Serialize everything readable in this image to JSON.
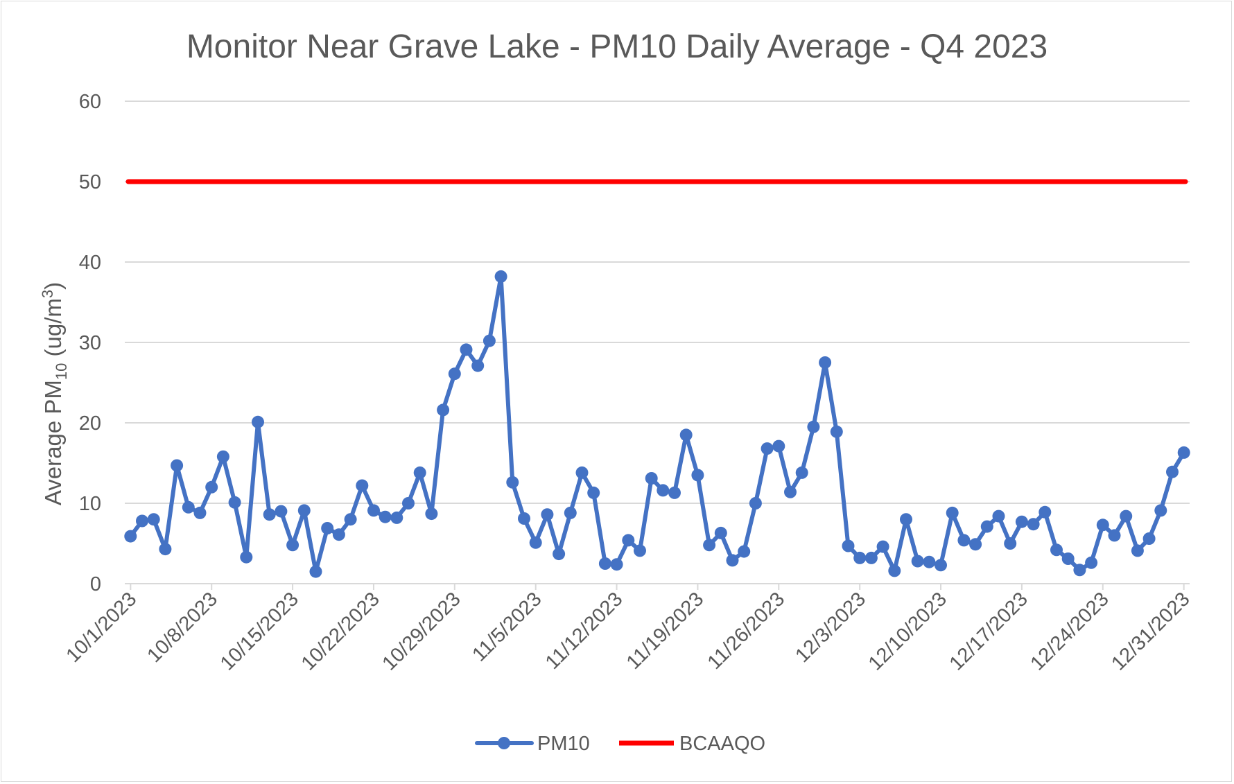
{
  "chart_data": {
    "type": "line",
    "title": "Monitor Near Grave Lake - PM10 Daily Average - Q4 2023",
    "ylabel": {
      "prefix": "Average PM",
      "sub": "10",
      "middle": " (ug/m",
      "sup": "3",
      "suffix": ")"
    },
    "xlabel": "",
    "ylim": [
      0,
      60
    ],
    "yticks": [
      0,
      10,
      20,
      30,
      40,
      50,
      60
    ],
    "xtick_labels": [
      "10/1/2023",
      "10/8/2023",
      "10/15/2023",
      "10/22/2023",
      "10/29/2023",
      "11/5/2023",
      "11/12/2023",
      "11/19/2023",
      "11/26/2023",
      "12/3/2023",
      "12/10/2023",
      "12/17/2023",
      "12/24/2023",
      "12/31/2023"
    ],
    "grid": true,
    "legend_position": "bottom",
    "series": [
      {
        "name": "PM10",
        "color": "#4472c4",
        "marker": "circle",
        "x_start": "10/1/2023",
        "x_end": "12/31/2023",
        "values": [
          5.9,
          7.8,
          8.0,
          4.3,
          14.7,
          9.5,
          8.8,
          12.0,
          15.8,
          10.1,
          3.3,
          20.1,
          8.6,
          9.0,
          4.8,
          9.1,
          1.5,
          6.9,
          6.1,
          8.0,
          12.2,
          9.1,
          8.3,
          8.2,
          10.0,
          13.8,
          8.7,
          21.6,
          26.1,
          29.1,
          27.1,
          30.2,
          38.2,
          12.6,
          8.1,
          5.1,
          8.6,
          3.7,
          8.8,
          13.8,
          11.3,
          2.5,
          2.4,
          5.4,
          4.1,
          13.1,
          11.6,
          11.3,
          18.5,
          13.5,
          4.8,
          6.3,
          2.9,
          4.0,
          10.0,
          16.8,
          17.1,
          11.4,
          13.8,
          19.5,
          27.5,
          18.9,
          4.7,
          3.2,
          3.2,
          4.6,
          1.6,
          8.0,
          2.8,
          2.7,
          2.3,
          8.8,
          5.4,
          4.9,
          7.1,
          8.4,
          5.0,
          7.7,
          7.4,
          8.9,
          4.2,
          3.1,
          1.7,
          2.6,
          7.3,
          6.0,
          8.4,
          4.1,
          5.6,
          9.1,
          13.9,
          16.3
        ]
      },
      {
        "name": "BCAAQO",
        "color": "#ff0000",
        "marker": "none",
        "constant": 50
      }
    ]
  }
}
